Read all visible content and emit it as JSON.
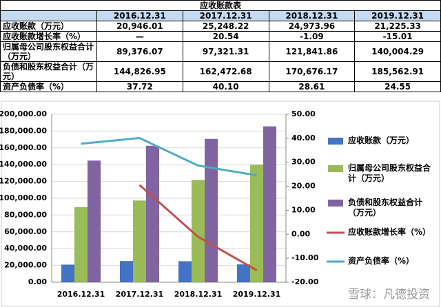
{
  "table": {
    "title": "应收账款表",
    "columns": [
      "2016.12.31",
      "2017.12.31",
      "2018.12.31",
      "2019.12.31"
    ],
    "rows": [
      {
        "label": "应收账款（万元）",
        "cells": [
          "20,946.01",
          "25,248.22",
          "24,973.96",
          "21,225.33"
        ]
      },
      {
        "label": "应收账款增长率（%）",
        "cells": [
          "—",
          "20.54",
          "-1.09",
          "-15.01"
        ]
      },
      {
        "label": "归属母公司股东权益合计（万元）",
        "cells": [
          "89,376.07",
          "97,321.31",
          "121,841.86",
          "140,004.29"
        ]
      },
      {
        "label": "负债和股东权益合计（万元）",
        "cells": [
          "144,826.95",
          "162,472.68",
          "170,676.17",
          "185,562.91"
        ]
      },
      {
        "label": "资产负债率（%）",
        "cells": [
          "37.72",
          "40.10",
          "28.61",
          "24.55"
        ]
      }
    ]
  },
  "chart_data": {
    "type": "combo",
    "categories": [
      "2016.12.31",
      "2017.12.31",
      "2018.12.31",
      "2019.12.31"
    ],
    "series": [
      {
        "name": "应收账款（万元）",
        "type": "bar",
        "color": "#4472c4",
        "values": [
          20946.01,
          25248.22,
          24973.96,
          21225.33
        ]
      },
      {
        "name": "归属母公司股东权益合计（万元）",
        "type": "bar",
        "color": "#9bbb59",
        "values": [
          89376.07,
          97321.31,
          121841.86,
          140004.29
        ]
      },
      {
        "name": "负债和股东权益合计（万元）",
        "type": "bar",
        "color": "#8064a2",
        "values": [
          144826.95,
          162472.68,
          170676.17,
          185562.91
        ]
      },
      {
        "name": "应收账款增长率（%）",
        "type": "line",
        "axis": "y2",
        "color": "#c0504d",
        "values": [
          null,
          20.54,
          -1.09,
          -15.01
        ]
      },
      {
        "name": "资产负债率（%）",
        "type": "line",
        "axis": "y2",
        "color": "#4bacc6",
        "values": [
          37.72,
          40.1,
          28.61,
          24.55
        ]
      }
    ],
    "ylim": [
      0,
      200000
    ],
    "yticks": [
      {
        "value": 0,
        "label": "0.00"
      },
      {
        "value": 20000,
        "label": "20,000.00"
      },
      {
        "value": 40000,
        "label": "40,000.00"
      },
      {
        "value": 60000,
        "label": "60,000.00"
      },
      {
        "value": 80000,
        "label": "80,000.00"
      },
      {
        "value": 100000,
        "label": "100,000.00"
      },
      {
        "value": 120000,
        "label": "120,000.00"
      },
      {
        "value": 140000,
        "label": "140,000.00"
      },
      {
        "value": 160000,
        "label": "160,000.00"
      },
      {
        "value": 180000,
        "label": "180,000.00"
      },
      {
        "value": 200000,
        "label": "200,000.00"
      }
    ],
    "y2lim": [
      -20,
      50
    ],
    "y2ticks": [
      {
        "value": -20,
        "label": "-20.00"
      },
      {
        "value": -10,
        "label": "-10.00"
      },
      {
        "value": 0,
        "label": "0.00"
      },
      {
        "value": 10,
        "label": "10.00"
      },
      {
        "value": 20,
        "label": "20.00"
      },
      {
        "value": 30,
        "label": "30.00"
      },
      {
        "value": 40,
        "label": "40.00"
      },
      {
        "value": 50,
        "label": "50.00"
      }
    ],
    "grid": true,
    "legend": "right",
    "watermark": "雪球：凡德投资"
  }
}
